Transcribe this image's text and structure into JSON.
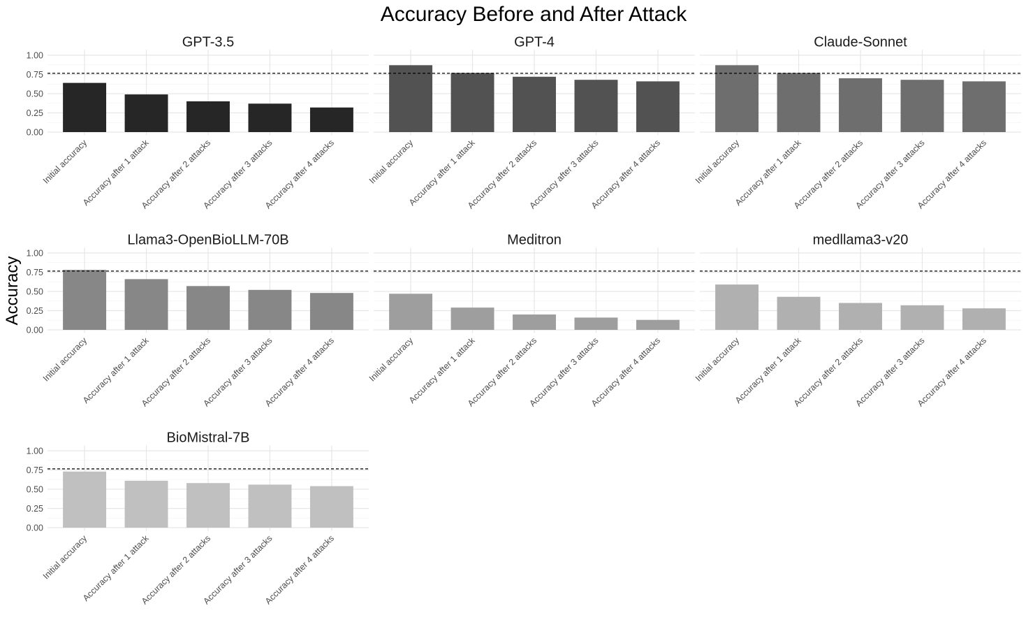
{
  "chart_data": {
    "type": "bar",
    "title": "Accuracy Before and After Attack",
    "xlabel": "",
    "ylabel": "Accuracy",
    "ylim": [
      0,
      1
    ],
    "yticks": [
      "0.00",
      "0.25",
      "0.50",
      "0.75",
      "1.00"
    ],
    "grid": true,
    "reference_line": {
      "y": 0.765,
      "style": "dashed",
      "color": "#000000"
    },
    "categories": [
      "Initial accuracy",
      "Accuracy after 1 attack",
      "Accuracy after 2 attacks",
      "Accuracy after 3 attacks",
      "Accuracy after 4 attacks"
    ],
    "panels": [
      {
        "name": "GPT-3.5",
        "color": "#262626",
        "values": [
          0.64,
          0.49,
          0.4,
          0.37,
          0.32
        ]
      },
      {
        "name": "GPT-4",
        "color": "#525252",
        "values": [
          0.87,
          0.77,
          0.72,
          0.68,
          0.66
        ]
      },
      {
        "name": "Claude-Sonnet",
        "color": "#6e6e6e",
        "values": [
          0.87,
          0.77,
          0.7,
          0.68,
          0.66
        ]
      },
      {
        "name": "Llama3-OpenBioLLM-70B",
        "color": "#878787",
        "values": [
          0.78,
          0.66,
          0.57,
          0.52,
          0.48
        ]
      },
      {
        "name": "Meditron",
        "color": "#9e9e9e",
        "values": [
          0.47,
          0.29,
          0.2,
          0.16,
          0.13
        ]
      },
      {
        "name": "medllama3-v20",
        "color": "#b0b0b0",
        "values": [
          0.59,
          0.43,
          0.35,
          0.32,
          0.28
        ]
      },
      {
        "name": "BioMistral-7B",
        "color": "#c0c0c0",
        "values": [
          0.73,
          0.61,
          0.58,
          0.56,
          0.54
        ]
      }
    ]
  }
}
